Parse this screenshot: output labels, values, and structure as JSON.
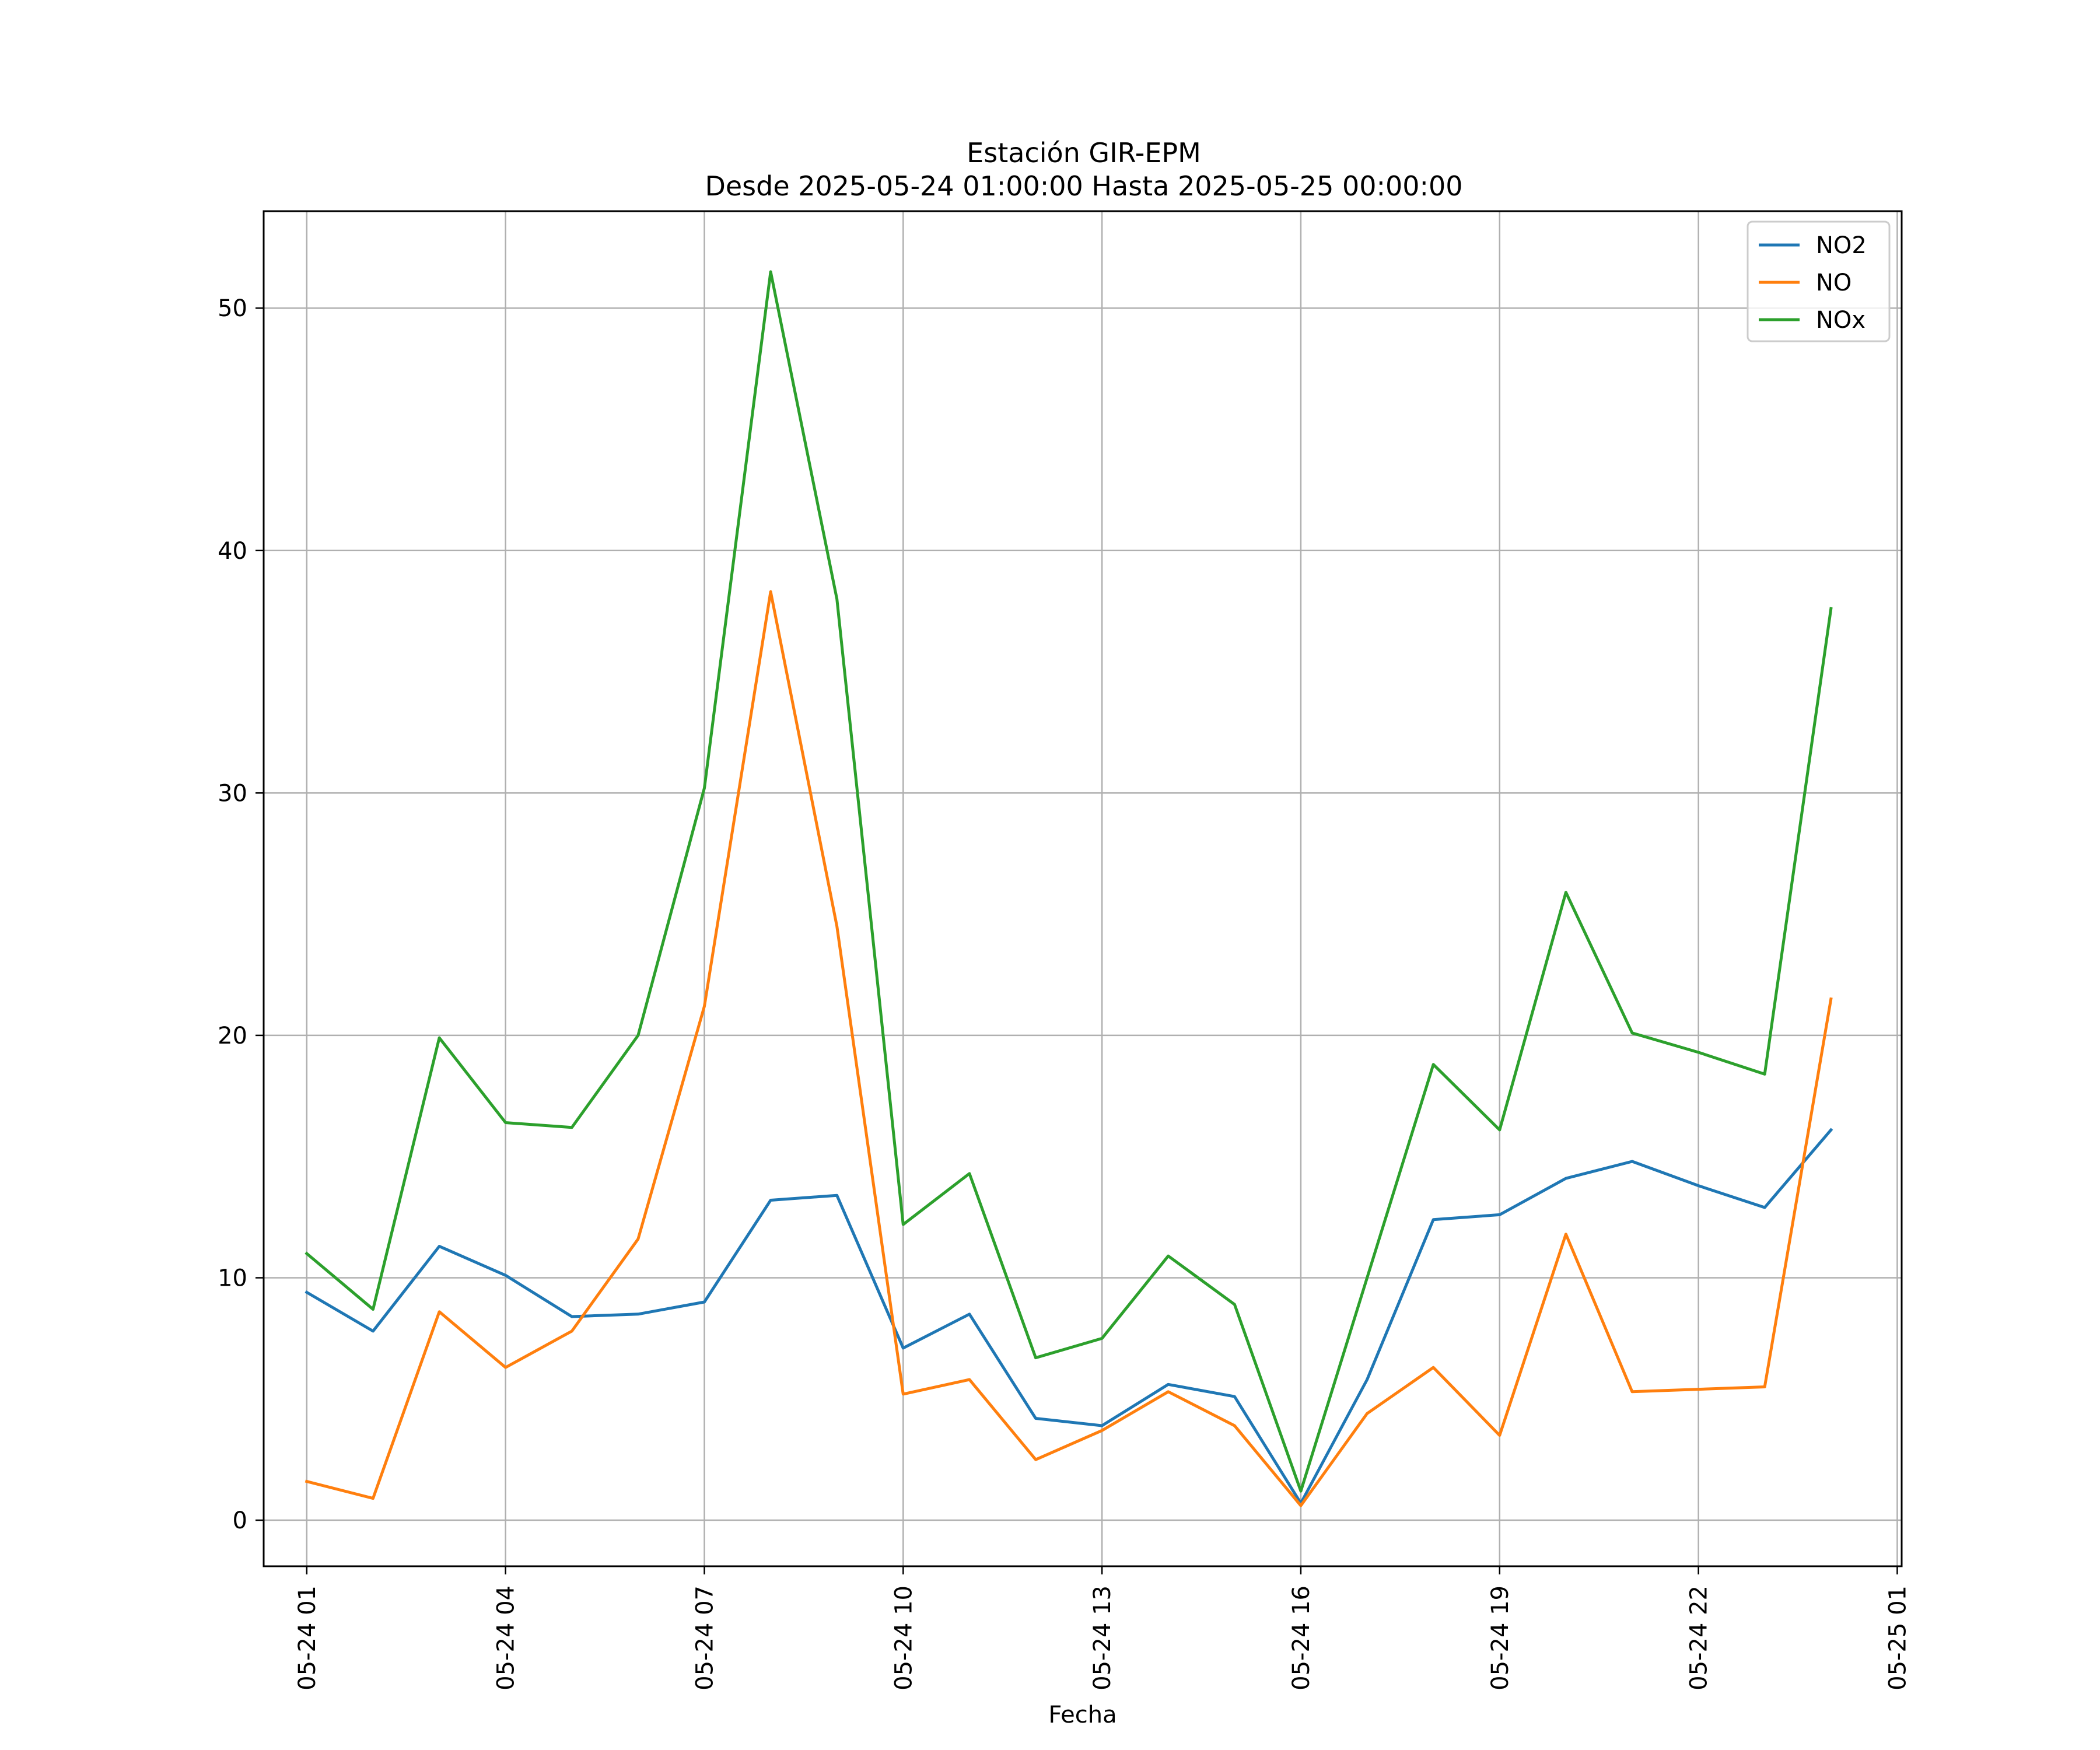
{
  "chart_data": {
    "type": "line",
    "title": "Estación GIR-EPM",
    "subtitle": "Desde 2025-05-24 01:00:00 Hasta 2025-05-25 00:00:00",
    "xlabel": "Fecha",
    "ylabel": "",
    "x": [
      "2025-05-24 01:00",
      "2025-05-24 02:00",
      "2025-05-24 03:00",
      "2025-05-24 04:00",
      "2025-05-24 05:00",
      "2025-05-24 06:00",
      "2025-05-24 07:00",
      "2025-05-24 08:00",
      "2025-05-24 09:00",
      "2025-05-24 10:00",
      "2025-05-24 11:00",
      "2025-05-24 12:00",
      "2025-05-24 13:00",
      "2025-05-24 14:00",
      "2025-05-24 15:00",
      "2025-05-24 16:00",
      "2025-05-24 17:00",
      "2025-05-24 18:00",
      "2025-05-24 19:00",
      "2025-05-24 20:00",
      "2025-05-24 21:00",
      "2025-05-24 22:00",
      "2025-05-24 23:00",
      "2025-05-25 00:00"
    ],
    "x_ticks": [
      "2025-05-24 01:00",
      "2025-05-24 04:00",
      "2025-05-24 07:00",
      "2025-05-24 10:00",
      "2025-05-24 13:00",
      "2025-05-24 16:00",
      "2025-05-24 19:00",
      "2025-05-24 22:00",
      "2025-05-25 01:00"
    ],
    "x_tick_labels": [
      "05-24 01",
      "05-24 04",
      "05-24 07",
      "05-24 10",
      "05-24 13",
      "05-24 16",
      "05-24 19",
      "05-24 22",
      "05-25 01"
    ],
    "xlim": [
      "2025-05-24 00:21",
      "2025-05-25 01:04"
    ],
    "y_ticks": [
      0,
      10,
      20,
      30,
      40,
      50
    ],
    "ylim": [
      -1.9,
      54.0
    ],
    "grid": true,
    "legend_position": "top-right",
    "series": [
      {
        "name": "NO2",
        "color": "#1f77b4",
        "values": [
          9.4,
          7.8,
          11.3,
          10.1,
          8.4,
          8.5,
          9.0,
          13.2,
          13.4,
          7.1,
          8.5,
          4.2,
          3.9,
          5.6,
          5.1,
          0.7,
          5.8,
          12.4,
          12.6,
          14.1,
          14.8,
          13.8,
          12.9,
          16.1
        ]
      },
      {
        "name": "NO",
        "color": "#ff7f0e",
        "values": [
          1.6,
          0.9,
          8.6,
          6.3,
          7.8,
          11.6,
          21.2,
          38.3,
          24.5,
          5.2,
          5.8,
          2.5,
          3.7,
          5.3,
          3.9,
          0.6,
          4.4,
          6.3,
          3.5,
          11.8,
          5.3,
          5.4,
          5.5,
          21.5
        ]
      },
      {
        "name": "NOx",
        "color": "#2ca02c",
        "values": [
          11.0,
          8.7,
          19.9,
          16.4,
          16.2,
          20.0,
          30.2,
          51.5,
          38.0,
          12.2,
          14.3,
          6.7,
          7.5,
          10.9,
          8.9,
          1.2,
          10.0,
          18.8,
          16.1,
          25.9,
          20.1,
          19.3,
          18.4,
          37.6
        ]
      }
    ]
  }
}
